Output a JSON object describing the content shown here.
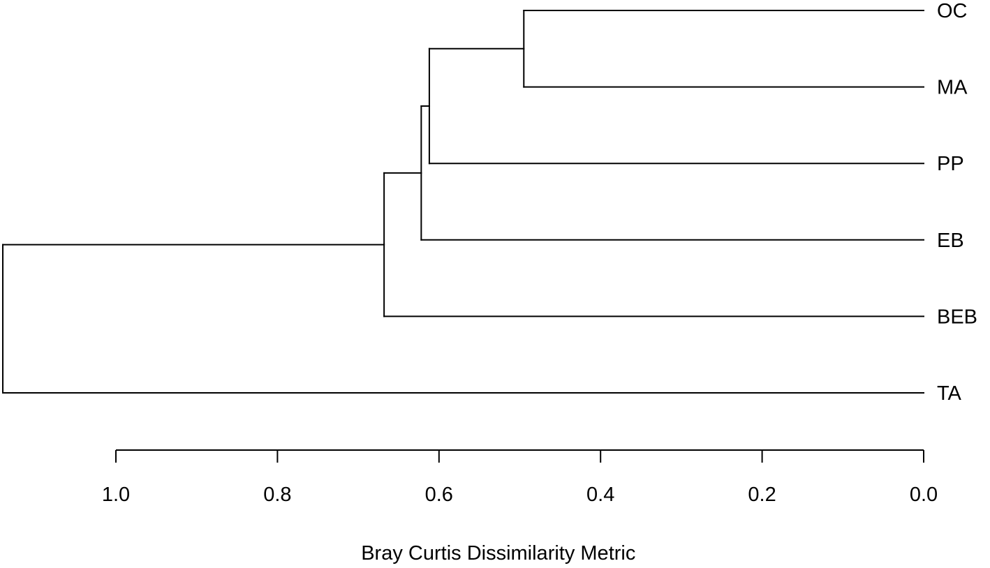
{
  "chart_data": {
    "type": "dendrogram",
    "xlabel": "Bray Curtis Dissimilarity Metric",
    "xlim": [
      1.0,
      0.0
    ],
    "x_ticks": [
      1.0,
      0.8,
      0.6,
      0.4,
      0.2,
      0.0
    ],
    "x_tick_labels": [
      "1.0",
      "0.8",
      "0.6",
      "0.4",
      "0.2",
      "0.0"
    ],
    "leaves": [
      "OC",
      "MA",
      "PP",
      "EB",
      "BEB",
      "TA"
    ],
    "merges": [
      {
        "left": "OC",
        "right": "MA",
        "height": 0.495,
        "name": "OC+MA"
      },
      {
        "left": "OC+MA",
        "right": "PP",
        "height": 0.612,
        "name": "OC+MA+PP"
      },
      {
        "left": "OC+MA+PP",
        "right": "EB",
        "height": 0.622,
        "name": "OC+MA+PP+EB"
      },
      {
        "left": "OC+MA+PP+EB",
        "right": "BEB",
        "height": 0.668,
        "name": "OC+MA+PP+EB+BEB"
      },
      {
        "left": "OC+MA+PP+EB+BEB",
        "right": "TA",
        "height": 1.14,
        "name": "root"
      }
    ],
    "grid": false,
    "legend": "none",
    "line_color": "#000000",
    "background": "#ffffff"
  }
}
